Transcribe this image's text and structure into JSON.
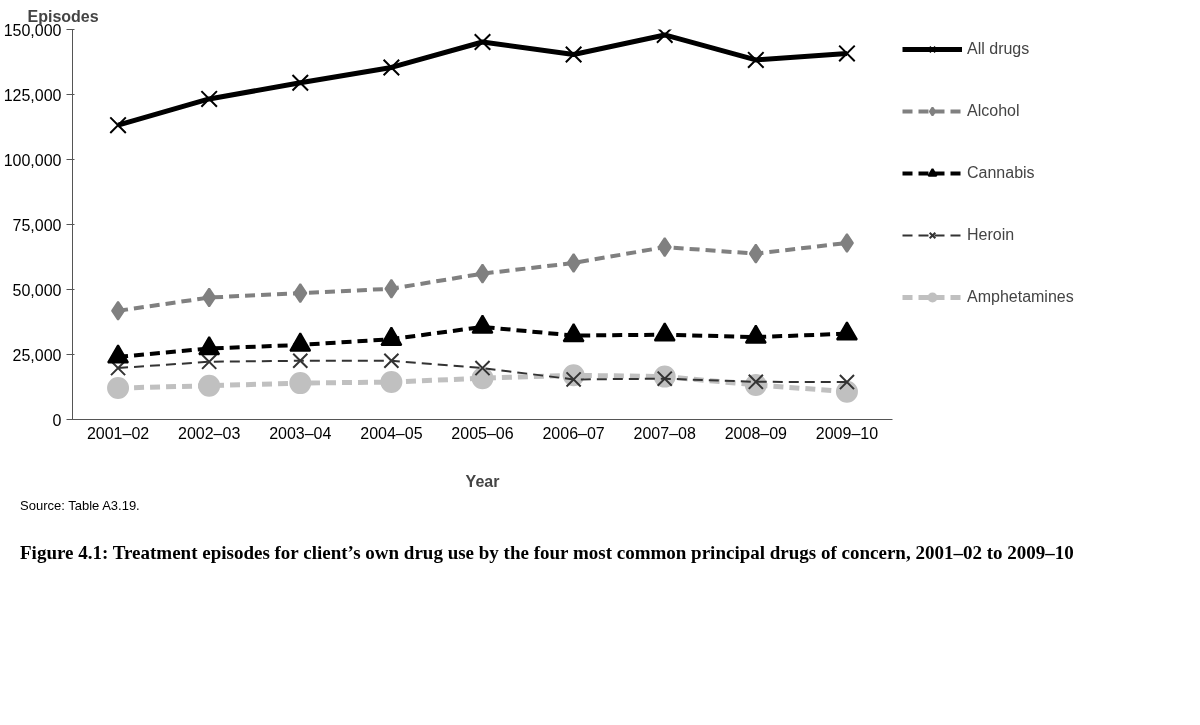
{
  "chart_data": {
    "type": "line",
    "title": "Figure 4.1: Treatment episodes for client’s own drug use by the four most common principal drugs of concern, 2001–02 to 2009–10",
    "xlabel": "Year",
    "ylabel": "Episodes",
    "annotations": [
      "Source: Table A3.19."
    ],
    "categories": [
      "2001–02",
      "2002–03",
      "2003–04",
      "2004–05",
      "2005–06",
      "2006–07",
      "2007–08",
      "2008–09",
      "2009–10"
    ],
    "series": [
      {
        "name": "All drugs",
        "color": "#000000",
        "marker": "cross",
        "line_style": "solid",
        "values": [
          113200,
          123300,
          129500,
          135400,
          145200,
          140400,
          147900,
          138300,
          140800
        ]
      },
      {
        "name": "Alcohol",
        "color": "#808080",
        "marker": "diamond",
        "line_style": "dashed",
        "values": [
          41800,
          46900,
          48600,
          50300,
          56100,
          60200,
          66300,
          63800,
          67900
        ]
      },
      {
        "name": "Cannabis",
        "color": "#000000",
        "marker": "triangle",
        "line_style": "dashed",
        "values": [
          24100,
          27300,
          28700,
          30900,
          35600,
          32300,
          32600,
          31700,
          33000
        ]
      },
      {
        "name": "Heroin",
        "color": "#333333",
        "marker": "cross",
        "line_style": "dashed",
        "values": [
          19800,
          22200,
          22600,
          22600,
          19800,
          15400,
          15700,
          14500,
          14400
        ]
      },
      {
        "name": "Amphetamines",
        "color": "#c0c0c0",
        "marker": "circle",
        "line_style": "dashed",
        "values": [
          12100,
          13000,
          14000,
          14400,
          15900,
          17000,
          16500,
          13300,
          10700
        ]
      }
    ],
    "ylim": [
      0,
      150000
    ],
    "yticks": [
      {
        "value": 0,
        "label": "0"
      },
      {
        "value": 25000,
        "label": "25,000"
      },
      {
        "value": 50000,
        "label": "50,000"
      },
      {
        "value": 75000,
        "label": "75,000"
      },
      {
        "value": 100000,
        "label": "100,000"
      },
      {
        "value": 125000,
        "label": "125,000"
      },
      {
        "value": 150000,
        "label": "150,000"
      }
    ],
    "grid": false,
    "legend": "right"
  }
}
